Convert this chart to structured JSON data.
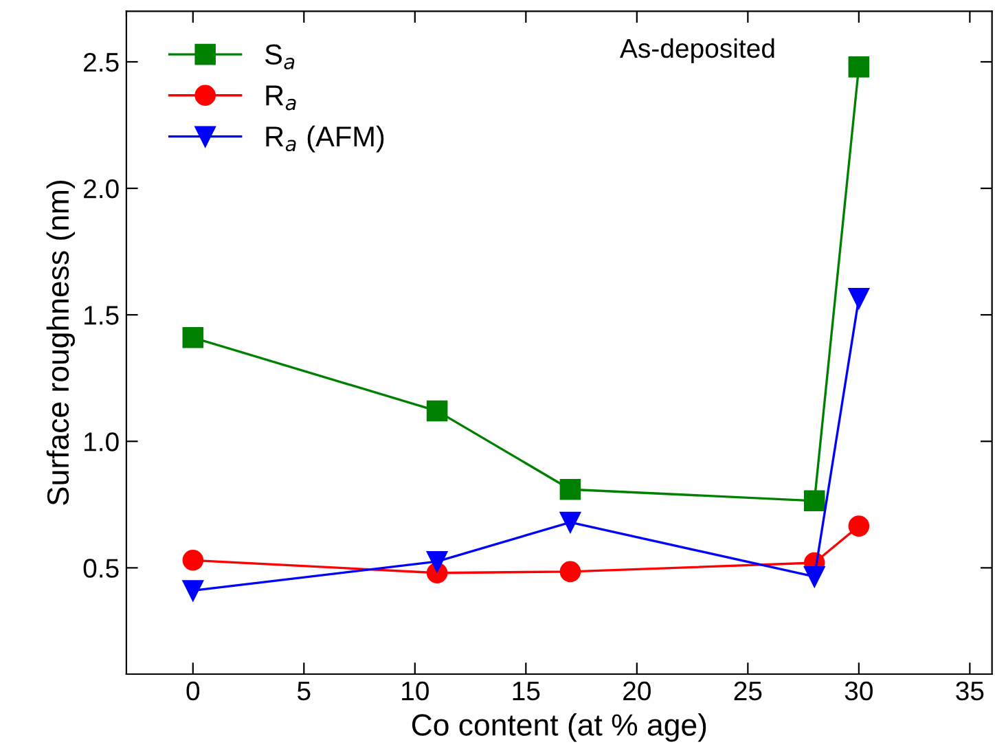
{
  "chart_data": {
    "type": "line",
    "xlabel": "Co content (at % age)",
    "ylabel": "Surface roughness (nm)",
    "x": [
      0,
      11,
      17,
      28,
      30
    ],
    "series": [
      {
        "name": "S$_{a}$",
        "color": "#008000",
        "marker": "square",
        "values": [
          1.41,
          1.12,
          0.81,
          0.765,
          2.48
        ]
      },
      {
        "name": "R$_{a}$",
        "color": "#ff0000",
        "marker": "circle",
        "values": [
          0.53,
          0.48,
          0.485,
          0.52,
          0.665
        ]
      },
      {
        "name": "R$_{a}$ (AFM)",
        "color": "#0000ff",
        "marker": "triangle",
        "values": [
          0.41,
          0.525,
          0.68,
          0.465,
          1.565
        ]
      }
    ],
    "annotations": [
      "As-deposited"
    ],
    "xlim": [
      -3,
      36
    ],
    "xticks": [
      0,
      5,
      10,
      15,
      20,
      25,
      30,
      35
    ],
    "ylim": [
      0.08,
      2.7
    ],
    "yticks": [
      {
        "value": 0.5,
        "label": "0.5"
      },
      {
        "value": 1.0,
        "label": "1.0"
      },
      {
        "value": 1.5,
        "label": "1.5"
      },
      {
        "value": 2.0,
        "label": "2.0"
      },
      {
        "value": 2.5,
        "label": "2.5"
      }
    ],
    "legend": "top left",
    "grid": false,
    "line_style": "solid"
  }
}
